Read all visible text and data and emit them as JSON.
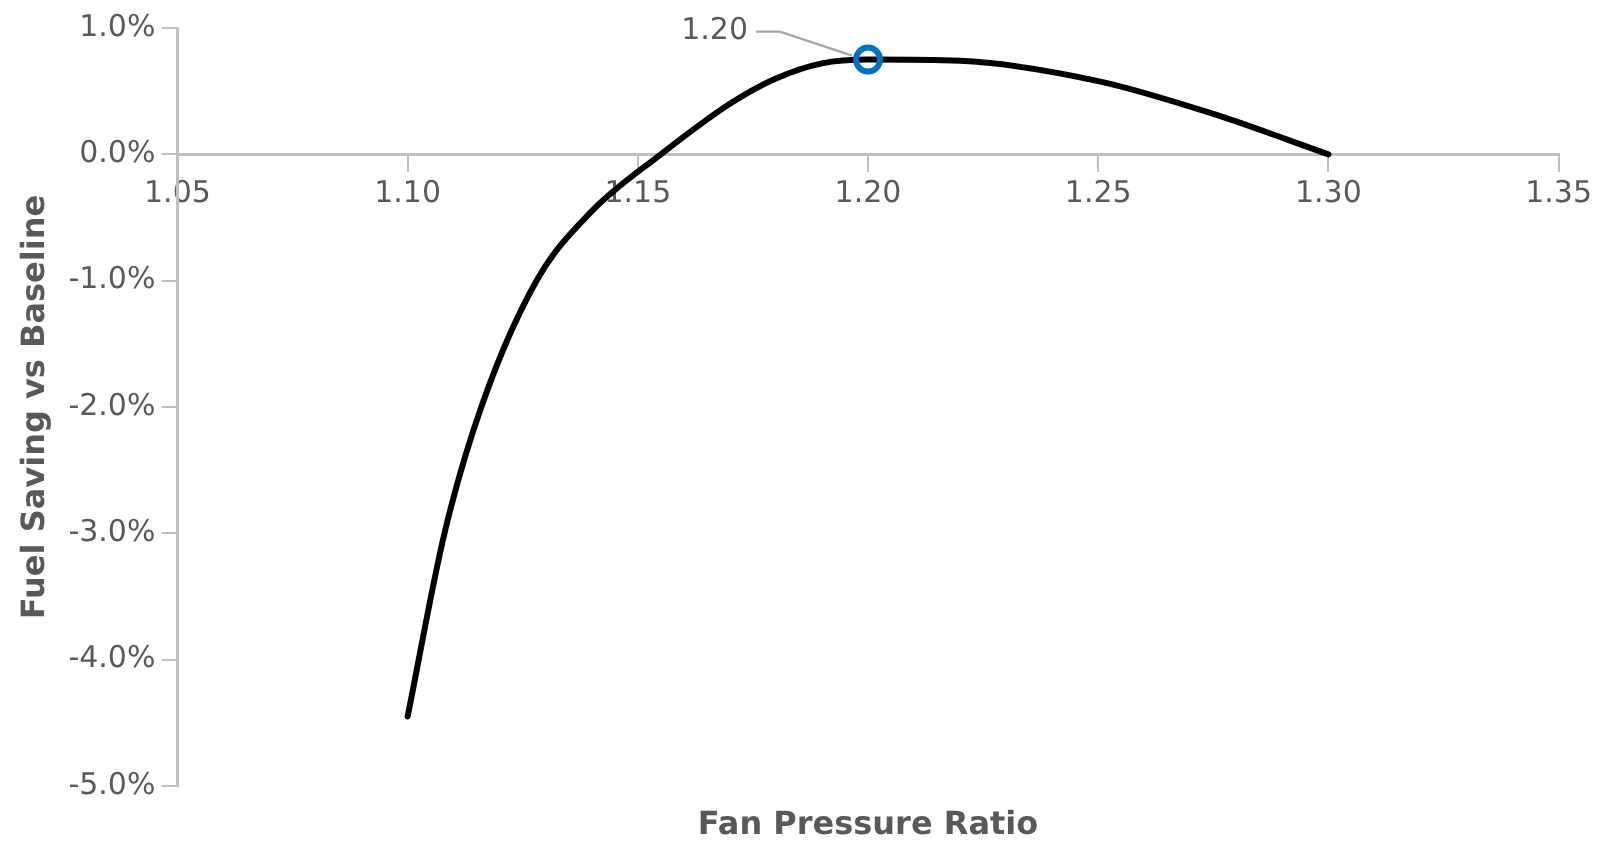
{
  "chart_data": {
    "type": "line",
    "xlabel": "Fan Pressure Ratio",
    "ylabel": "Fuel Saving vs Baseline",
    "xlim": [
      1.05,
      1.35
    ],
    "xticks": [
      {
        "value": 1.05,
        "label": "1.05"
      },
      {
        "value": 1.1,
        "label": "1.10"
      },
      {
        "value": 1.15,
        "label": "1.15"
      },
      {
        "value": 1.2,
        "label": "1.20"
      },
      {
        "value": 1.25,
        "label": "1.25"
      },
      {
        "value": 1.3,
        "label": "1.30"
      },
      {
        "value": 1.35,
        "label": "1.35"
      }
    ],
    "ylim": [
      -5,
      1
    ],
    "yticks": [
      {
        "value": -5,
        "label": "-5.0%"
      },
      {
        "value": -4,
        "label": "-4.0%"
      },
      {
        "value": -3,
        "label": "-3.0%"
      },
      {
        "value": -2,
        "label": "-2.0%"
      },
      {
        "value": -1,
        "label": "-1.0%"
      },
      {
        "value": 0,
        "label": "0.0%"
      },
      {
        "value": 1,
        "label": "1.0%"
      }
    ],
    "grid": false,
    "legend": false,
    "series": [
      {
        "type": "line",
        "color": "#000000",
        "marker": "none",
        "x": [
          1.1,
          1.108,
          1.116,
          1.128,
          1.14,
          1.155,
          1.17,
          1.18,
          1.19,
          1.2,
          1.22,
          1.25,
          1.275,
          1.3
        ],
        "values": [
          -4.45,
          -3.0,
          -2.0,
          -1.0,
          -0.45,
          0.0,
          0.4,
          0.6,
          0.72,
          0.75,
          0.74,
          0.58,
          0.32,
          0.0
        ]
      },
      {
        "type": "scatter",
        "color": "#0070c0",
        "marker": "circle",
        "x": [
          1.2
        ],
        "values": [
          0.75
        ]
      }
    ],
    "annotations": [
      {
        "text": "1.20",
        "x": 1.2,
        "y": 0.75
      }
    ]
  }
}
